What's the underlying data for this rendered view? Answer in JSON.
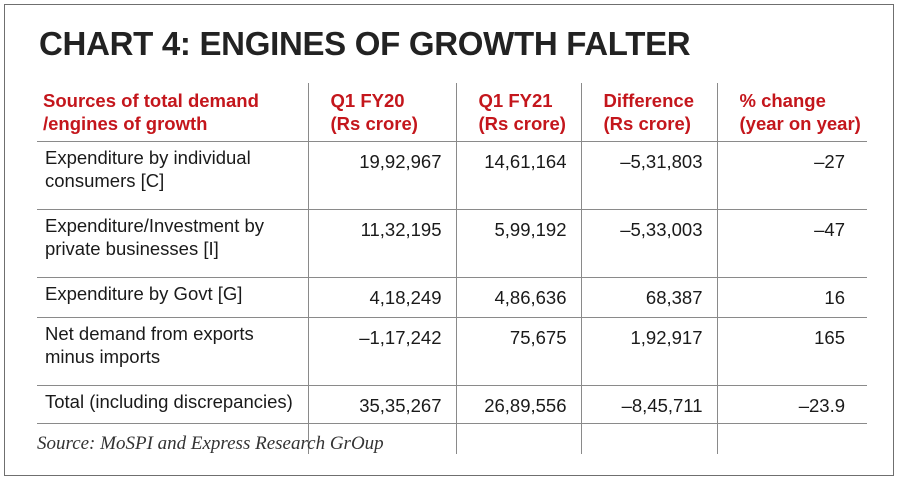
{
  "title": "CHART 4: ENGINES OF GROWTH FALTER",
  "headers": [
    "Sources of total demand\n/engines of growth",
    "Q1 FY20\n(Rs crore)",
    "Q1 FY21\n(Rs crore)",
    "Difference\n(Rs crore)",
    "% change\n(year on year)"
  ],
  "rows": [
    {
      "label": "Expenditure by individual consumers [C]",
      "q1fy20": "19,92,967",
      "q1fy21": "14,61,164",
      "difference": "–5,31,803",
      "pct_change": "–27"
    },
    {
      "label": "Expenditure/Investment by private businesses [I]",
      "q1fy20": "11,32,195",
      "q1fy21": "5,99,192",
      "difference": "–5,33,003",
      "pct_change": "–47"
    },
    {
      "label": "Expenditure by Govt [G]",
      "q1fy20": "4,18,249",
      "q1fy21": "4,86,636",
      "difference": "68,387",
      "pct_change": "16"
    },
    {
      "label": "Net demand from exports minus imports",
      "q1fy20": "–1,17,242",
      "q1fy21": "75,675",
      "difference": "1,92,917",
      "pct_change": "165"
    },
    {
      "label": "Total (including discrepancies)",
      "q1fy20": "35,35,267",
      "q1fy21": "26,89,556",
      "difference": "–8,45,711",
      "pct_change": "–23.9"
    }
  ],
  "source": "Source: MoSPI and Express Research GrOup",
  "colors": {
    "header_text": "#c4161c",
    "rule": "#8a8a8a",
    "title_text": "#222222"
  }
}
